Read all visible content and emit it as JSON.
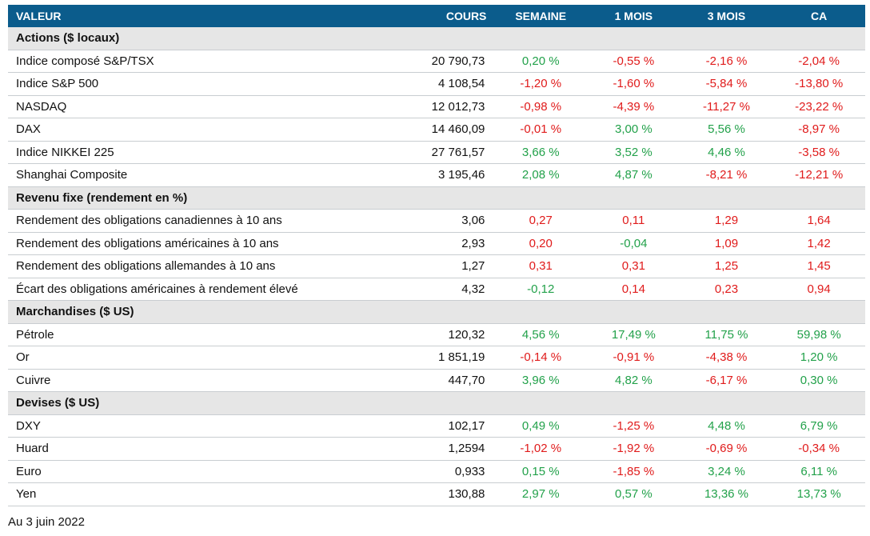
{
  "colors": {
    "header_bg": "#0b5c8c",
    "section_bg": "#e6e6e6",
    "positive": "#22a14a",
    "negative": "#e01b1b"
  },
  "header": {
    "valeur": "VALEUR",
    "cours": "COURS",
    "semaine": "SEMAINE",
    "mois1": "1 MOIS",
    "mois3": "3 MOIS",
    "ca": "CA"
  },
  "sections": [
    {
      "title": "Actions ($ locaux)",
      "rows": [
        {
          "name": "Indice composé S&P/TSX",
          "cours": "20 790,73",
          "semaine": "0,20 %",
          "mois1": "-0,55 %",
          "mois3": "-2,16 %",
          "ca": "-2,04 %"
        },
        {
          "name": "Indice S&P 500",
          "cours": "4 108,54",
          "semaine": "-1,20 %",
          "mois1": "-1,60 %",
          "mois3": "-5,84 %",
          "ca": "-13,80 %"
        },
        {
          "name": "NASDAQ",
          "cours": "12 012,73",
          "semaine": "-0,98 %",
          "mois1": "-4,39 %",
          "mois3": "-11,27 %",
          "ca": "-23,22 %"
        },
        {
          "name": "DAX",
          "cours": "14 460,09",
          "semaine": "-0,01 %",
          "mois1": "3,00 %",
          "mois3": "5,56 %",
          "ca": "-8,97 %"
        },
        {
          "name": "Indice NIKKEI 225",
          "cours": "27 761,57",
          "semaine": "3,66 %",
          "mois1": "3,52 %",
          "mois3": "4,46 %",
          "ca": "-3,58 %"
        },
        {
          "name": "Shanghai Composite",
          "cours": "3 195,46",
          "semaine": "2,08 %",
          "mois1": "4,87 %",
          "mois3": "-8,21 %",
          "ca": "-12,21 %"
        }
      ]
    },
    {
      "title": "Revenu fixe (rendement en %)",
      "rows": [
        {
          "name": "Rendement des obligations canadiennes à 10 ans",
          "cours": "3,06",
          "semaine": "0,27",
          "mois1": "0,11",
          "mois3": "1,29",
          "ca": "1,64",
          "colors": [
            "neg",
            "neg",
            "neg",
            "neg"
          ]
        },
        {
          "name": "Rendement des obligations américaines à 10 ans",
          "cours": "2,93",
          "semaine": "0,20",
          "mois1": "-0,04",
          "mois3": "1,09",
          "ca": "1,42",
          "colors": [
            "neg",
            "pos",
            "neg",
            "neg"
          ]
        },
        {
          "name": "Rendement des obligations allemandes à 10 ans",
          "cours": "1,27",
          "semaine": "0,31",
          "mois1": "0,31",
          "mois3": "1,25",
          "ca": "1,45",
          "colors": [
            "neg",
            "neg",
            "neg",
            "neg"
          ]
        },
        {
          "name": "Écart des obligations américaines à rendement élevé",
          "cours": "4,32",
          "semaine": "-0,12",
          "mois1": "0,14",
          "mois3": "0,23",
          "ca": "0,94",
          "colors": [
            "pos",
            "neg",
            "neg",
            "neg"
          ]
        }
      ]
    },
    {
      "title": "Marchandises ($ US)",
      "rows": [
        {
          "name": "Pétrole",
          "cours": "120,32",
          "semaine": "4,56 %",
          "mois1": "17,49 %",
          "mois3": "11,75 %",
          "ca": "59,98 %"
        },
        {
          "name": "Or",
          "cours": "1 851,19",
          "semaine": "-0,14 %",
          "mois1": "-0,91 %",
          "mois3": "-4,38 %",
          "ca": "1,20 %"
        },
        {
          "name": "Cuivre",
          "cours": "447,70",
          "semaine": "3,96 %",
          "mois1": "4,82 %",
          "mois3": "-6,17 %",
          "ca": "0,30 %"
        }
      ]
    },
    {
      "title": "Devises ($ US)",
      "rows": [
        {
          "name": "DXY",
          "cours": "102,17",
          "semaine": "0,49 %",
          "mois1": "-1,25 %",
          "mois3": "4,48 %",
          "ca": "6,79 %"
        },
        {
          "name": "Huard",
          "cours": "1,2594",
          "semaine": "-1,02 %",
          "mois1": "-1,92 %",
          "mois3": "-0,69 %",
          "ca": "-0,34 %"
        },
        {
          "name": "Euro",
          "cours": "0,933",
          "semaine": "0,15 %",
          "mois1": "-1,85 %",
          "mois3": "3,24 %",
          "ca": "6,11 %"
        },
        {
          "name": "Yen",
          "cours": "130,88",
          "semaine": "2,97 %",
          "mois1": "0,57 %",
          "mois3": "13,36 %",
          "ca": "13,73 %"
        }
      ]
    }
  ],
  "footnote": "Au 3 juin 2022"
}
